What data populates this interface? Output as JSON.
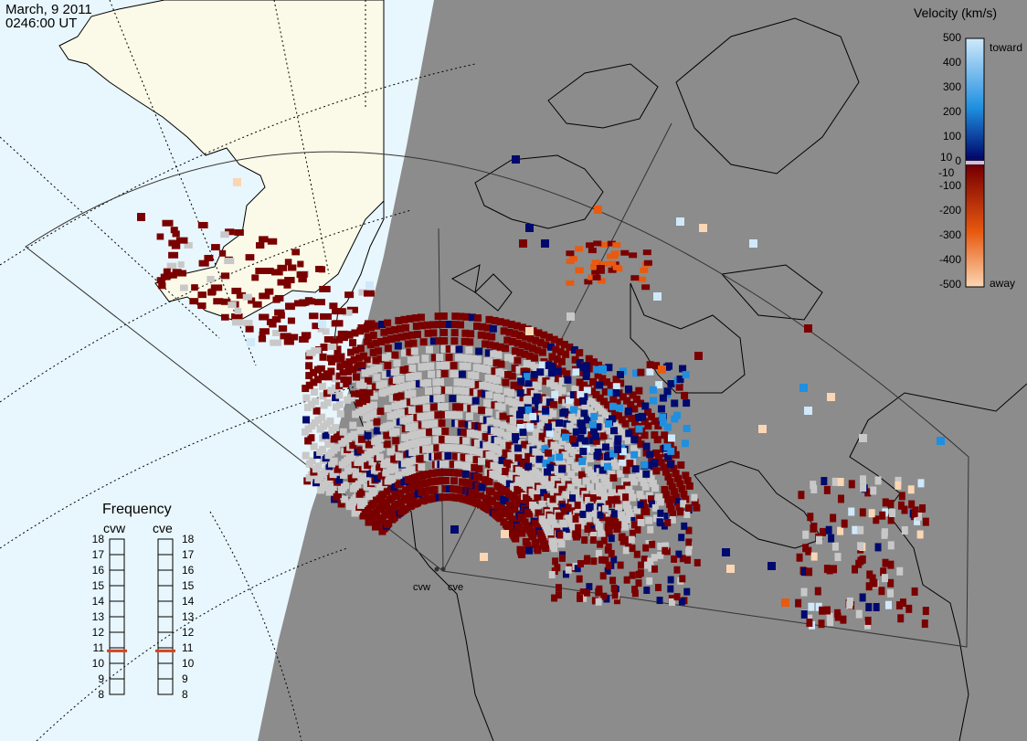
{
  "title": {
    "date": "March, 9 2011",
    "time": "0246:00 UT"
  },
  "velocity_scale": {
    "title": "Velocity (km/s)",
    "toward_label": "toward",
    "away_label": "away",
    "ticks": [
      "500",
      "400",
      "300",
      "200",
      "100",
      "10",
      "0",
      "-10",
      "-100",
      "-200",
      "-300",
      "-400",
      "-500"
    ],
    "colors": {
      "toward_strong": "#cfe9fb",
      "toward_mid": "#1f8fe0",
      "toward_weak": "#000a6e",
      "away_weak": "#7a0000",
      "away_mid": "#e85a10",
      "away_strong": "#fbd6b4",
      "ground_scatter": "#c8c8c8"
    }
  },
  "frequency_panel": {
    "title": "Frequency",
    "radars": [
      "cvw",
      "cve"
    ],
    "ticks": [
      "18",
      "17",
      "16",
      "15",
      "14",
      "13",
      "12",
      "11",
      "10",
      "9",
      "8"
    ],
    "values_mhz": [
      10.8,
      10.8
    ],
    "marker_color": "#d4441e"
  },
  "radar_sites": [
    {
      "name": "cvw"
    },
    {
      "name": "cve"
    }
  ],
  "map": {
    "ocean_color": "#e8f6fd",
    "land_color": "#fbfae8",
    "night_color": "#8c8c8c",
    "grid_style": "dotted",
    "coastline_color": "#000000"
  }
}
